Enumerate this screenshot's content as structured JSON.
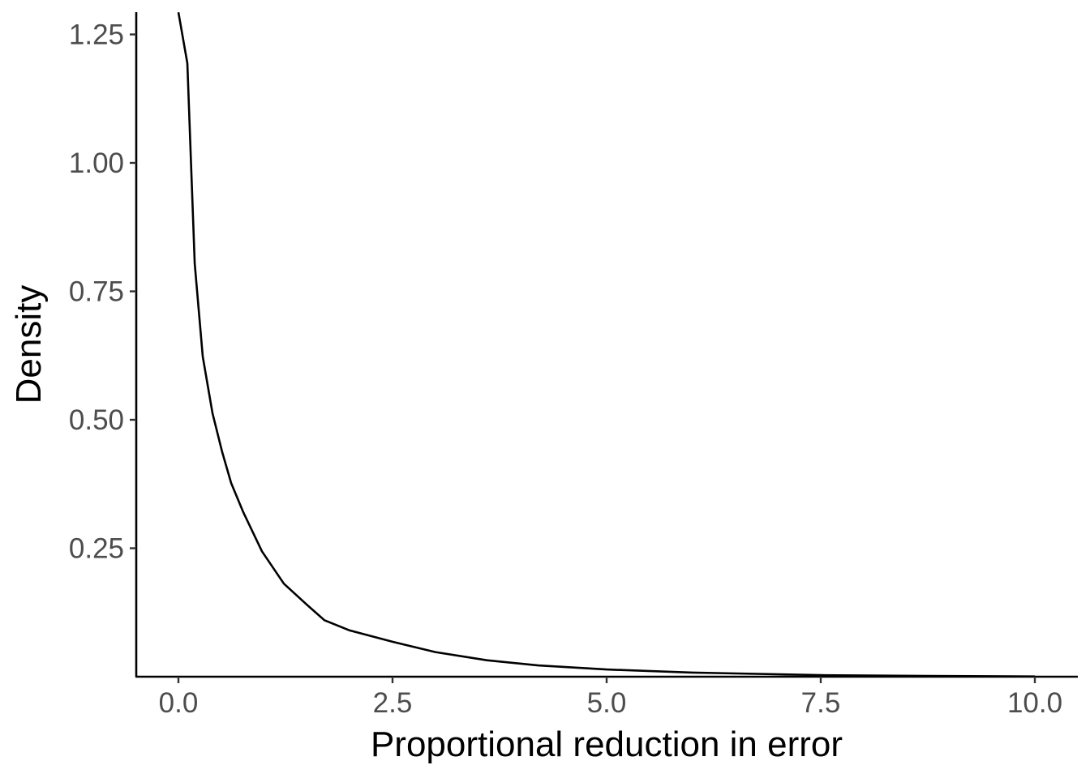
{
  "chart_data": {
    "type": "line",
    "title": "",
    "xlabel": "Proportional reduction in error",
    "ylabel": "Density",
    "xlim": [
      -0.5,
      10.5
    ],
    "ylim": [
      0,
      1.3
    ],
    "grid": false,
    "legend": null,
    "x_ticks": [
      0.0,
      2.5,
      5.0,
      7.5,
      10.0
    ],
    "x_tick_labels": [
      "0.0",
      "2.5",
      "5.0",
      "7.5",
      "10.0"
    ],
    "y_ticks": [
      0.25,
      0.5,
      0.75,
      1.0,
      1.25
    ],
    "y_tick_labels": [
      "0.25",
      "0.50",
      "0.75",
      "1.00",
      "1.25"
    ],
    "series": [
      {
        "name": "density",
        "color": "#000000",
        "x": [
          0.0,
          0.104,
          0.19,
          0.284,
          0.398,
          0.511,
          0.616,
          0.758,
          0.975,
          1.231,
          1.5,
          1.705,
          2.0,
          2.5,
          3.0,
          3.6,
          4.2,
          5.0,
          6.0,
          7.5,
          8.75,
          10.0
        ],
        "y": [
          1.293,
          1.194,
          0.804,
          0.623,
          0.513,
          0.437,
          0.377,
          0.32,
          0.244,
          0.181,
          0.14,
          0.11,
          0.09,
          0.068,
          0.048,
          0.032,
          0.022,
          0.014,
          0.008,
          0.003,
          0.0015,
          0.0005
        ]
      }
    ]
  }
}
